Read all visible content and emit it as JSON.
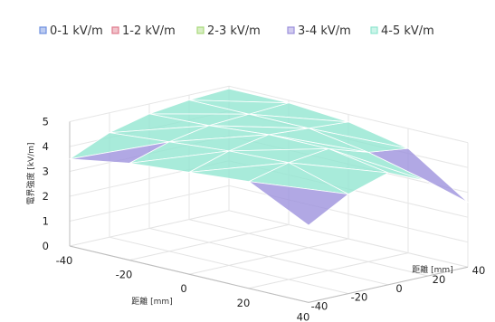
{
  "chart_data": {
    "type": "surface3d",
    "title": "",
    "legend": {
      "placement": "top",
      "entries": [
        {
          "label": "0-1 kV/m",
          "range": [
            0,
            1
          ],
          "color": "#6d8fe0"
        },
        {
          "label": "1-2 kV/m",
          "range": [
            1,
            2
          ],
          "color": "#e07a8c"
        },
        {
          "label": "2-3 kV/m",
          "range": [
            2,
            3
          ],
          "color": "#a9d97c"
        },
        {
          "label": "3-4 kV/m",
          "range": [
            3,
            4
          ],
          "color": "#9b8fdc"
        },
        {
          "label": "4-5 kV/m",
          "range": [
            4,
            5
          ],
          "color": "#8fe6cf"
        }
      ]
    },
    "x_axis": {
      "label": "距離 [mm]",
      "ticks": [
        -40,
        -20,
        0,
        20,
        40
      ],
      "range": [
        -40,
        40
      ]
    },
    "y_axis": {
      "label": "距離 [mm]",
      "ticks": [
        -40,
        -20,
        0,
        20,
        40
      ],
      "range": [
        -40,
        40
      ]
    },
    "z_axis": {
      "label": "電界強度 [kV/m]",
      "ticks": [
        0,
        1,
        2,
        3,
        4,
        5
      ],
      "range": [
        0,
        5
      ]
    },
    "grid": true,
    "grid_x": [
      -40,
      -20,
      0,
      20,
      40
    ],
    "grid_y": [
      -40,
      -20,
      0,
      20,
      40
    ],
    "values": [
      [
        3.5,
        4.2,
        4.6,
        4.8,
        4.9
      ],
      [
        3.9,
        4.4,
        4.7,
        4.8,
        4.9
      ],
      [
        4.1,
        4.6,
        4.9,
        4.8,
        4.7
      ],
      [
        4.3,
        4.7,
        4.9,
        4.4,
        4.2
      ],
      [
        3.1,
        4.0,
        4.5,
        3.8,
        2.6
      ]
    ]
  }
}
